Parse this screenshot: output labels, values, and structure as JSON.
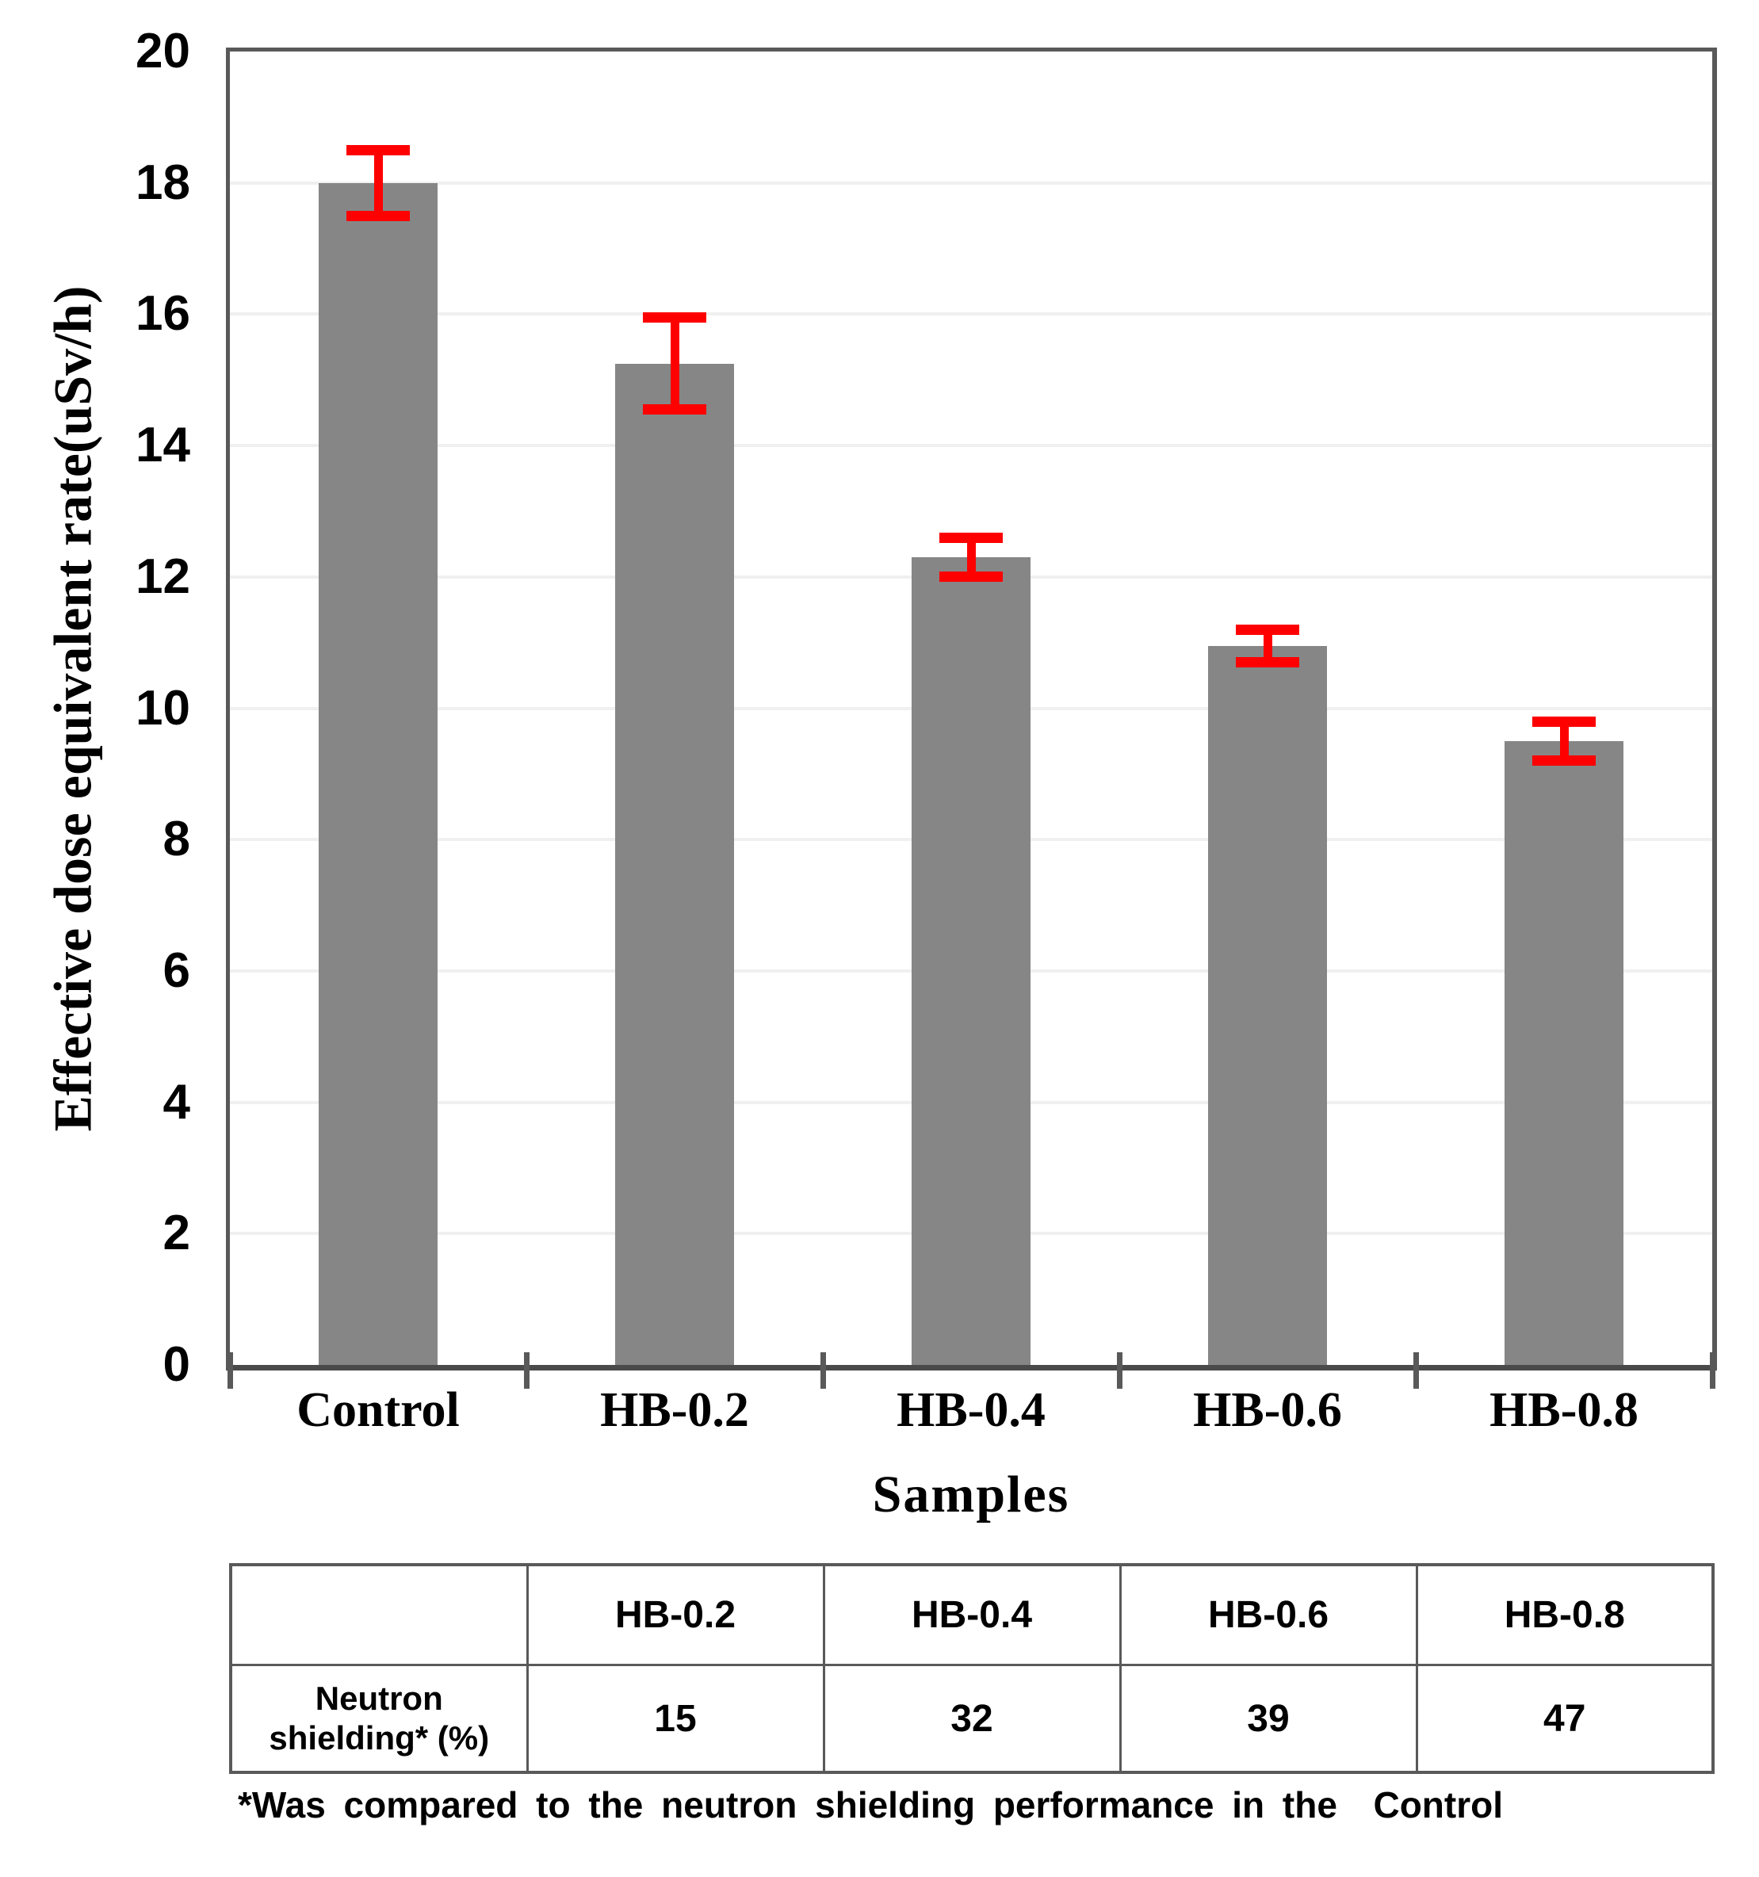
{
  "chart_data": {
    "type": "bar",
    "title": "",
    "xlabel": "Samples",
    "ylabel": "Effective dose equivalent rate(uSv/h)",
    "categories": [
      "Control",
      "HB-0.2",
      "HB-0.4",
      "HB-0.6",
      "HB-0.8"
    ],
    "values": [
      18.0,
      15.25,
      12.3,
      10.95,
      9.5
    ],
    "error_bars": [
      0.5,
      0.7,
      0.3,
      0.25,
      0.3
    ],
    "ylim": [
      0,
      20
    ],
    "y_tick_step": 2,
    "grid": "horizontal-light",
    "legend": "none",
    "bar_color": "#868686",
    "error_color": "#fe0000"
  },
  "table": {
    "columns": [
      "",
      "HB-0.2",
      "HB-0.4",
      "HB-0.6",
      "HB-0.8"
    ],
    "rows": [
      {
        "label": "Neutron\nshielding* (%)",
        "values": [
          "15",
          "32",
          "39",
          "47"
        ]
      }
    ]
  },
  "footnote": "*Was compared to the neutron shielding performance in the  Control"
}
